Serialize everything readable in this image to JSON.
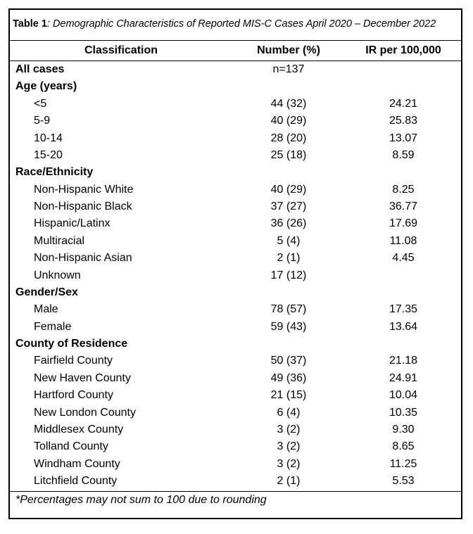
{
  "table": {
    "title_label": "Table 1",
    "title_text": ": Demographic Characteristics of Reported MIS-C Cases April 2020 – December 2022",
    "columns": [
      "Classification",
      "Number (%)",
      "IR per 100,000"
    ],
    "total": [
      "All cases",
      "n=137"
    ],
    "sections": [
      {
        "heading": "Age (years)",
        "rows": [
          [
            "<5",
            "44 (32)",
            "24.21"
          ],
          [
            "5-9",
            "40 (29)",
            "25.83"
          ],
          [
            "10-14",
            "28 (20)",
            "13.07"
          ],
          [
            "15-20",
            "25 (18)",
            "8.59"
          ]
        ]
      },
      {
        "heading": "Race/Ethnicity",
        "rows": [
          [
            "Non-Hispanic White",
            "40 (29)",
            "8.25"
          ],
          [
            "Non-Hispanic Black",
            "37 (27)",
            "36.77"
          ],
          [
            "Hispanic/Latinx",
            "36 (26)",
            "17.69"
          ],
          [
            "Multiracial",
            "5 (4)",
            "11.08"
          ],
          [
            "Non-Hispanic Asian",
            "2 (1)",
            "4.45"
          ],
          [
            "Unknown",
            "17 (12)"
          ]
        ]
      },
      {
        "heading": "Gender/Sex",
        "rows": [
          [
            "Male",
            "78 (57)",
            "17.35"
          ],
          [
            "Female",
            "59 (43)",
            "13.64"
          ]
        ]
      },
      {
        "heading": "County of Residence",
        "rows": [
          [
            "Fairfield County",
            "50 (37)",
            "21.18"
          ],
          [
            "New Haven County",
            "49 (36)",
            "24.91"
          ],
          [
            "Hartford County",
            "21 (15)",
            "10.04"
          ],
          [
            "New London County",
            "6 (4)",
            "10.35"
          ],
          [
            "Middlesex County",
            "3 (2)",
            "9.30"
          ],
          [
            "Tolland County",
            "3 (2)",
            "8.65"
          ],
          [
            "Windham County",
            "3 (2)",
            "11.25"
          ],
          [
            "Litchfield County",
            "2 (1)",
            "5.53"
          ]
        ]
      }
    ],
    "footnote": "*Percentages may not sum to 100 due to rounding"
  }
}
